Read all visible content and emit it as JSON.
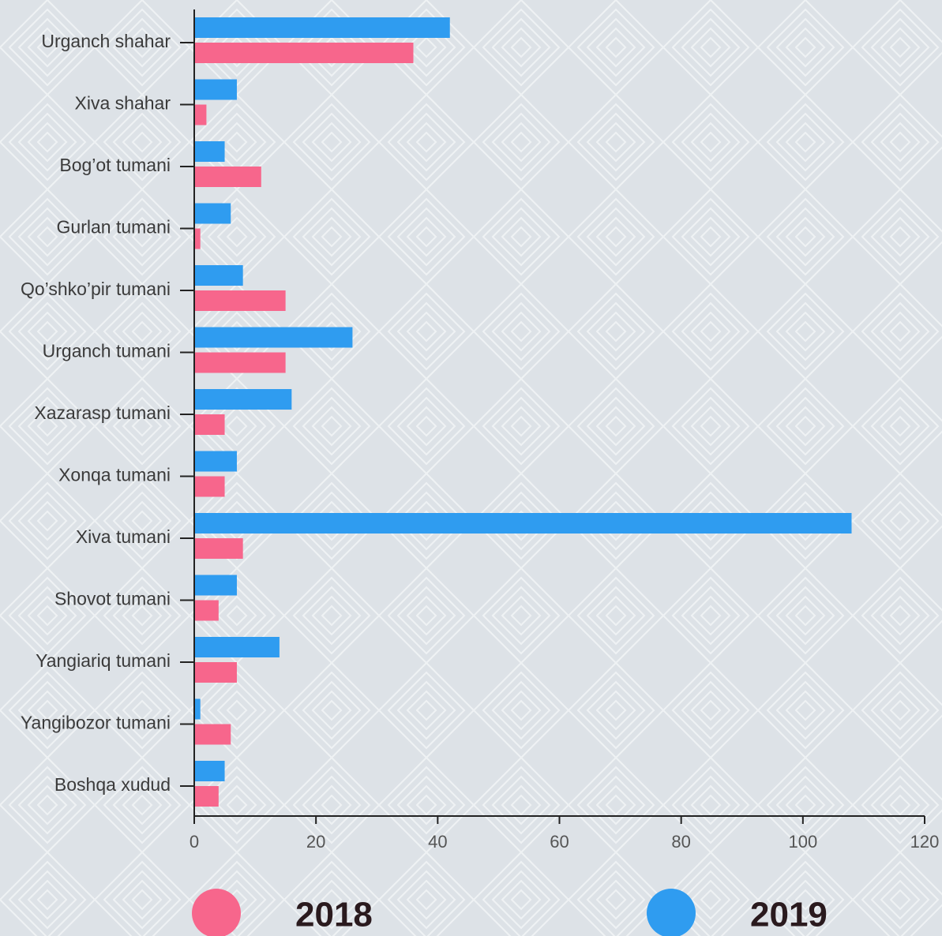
{
  "chart_data": {
    "type": "hbar",
    "categories": [
      "Urganch shahar",
      "Xiva shahar",
      "Bog’ot tumani",
      "Gurlan tumani",
      "Qo’shko’pir tumani",
      "Urganch tumani",
      "Xazarasp tumani",
      "Xonqa tumani",
      "Xiva tumani",
      "Shovot tumani",
      "Yangiariq tumani",
      "Yangibozor tumani",
      "Boshqa xudud"
    ],
    "series": [
      {
        "name": "2018",
        "color": "#f7668c",
        "values": [
          36,
          2,
          11,
          1,
          15,
          15,
          5,
          5,
          8,
          4,
          7,
          6,
          4
        ]
      },
      {
        "name": "2019",
        "color": "#2f9cf0",
        "values": [
          42,
          7,
          5,
          6,
          8,
          26,
          16,
          7,
          108,
          7,
          14,
          1,
          5
        ]
      }
    ],
    "xlim": [
      0,
      120
    ],
    "xticks": [
      0,
      20,
      40,
      60,
      80,
      100,
      120
    ],
    "legend": "bottom"
  }
}
